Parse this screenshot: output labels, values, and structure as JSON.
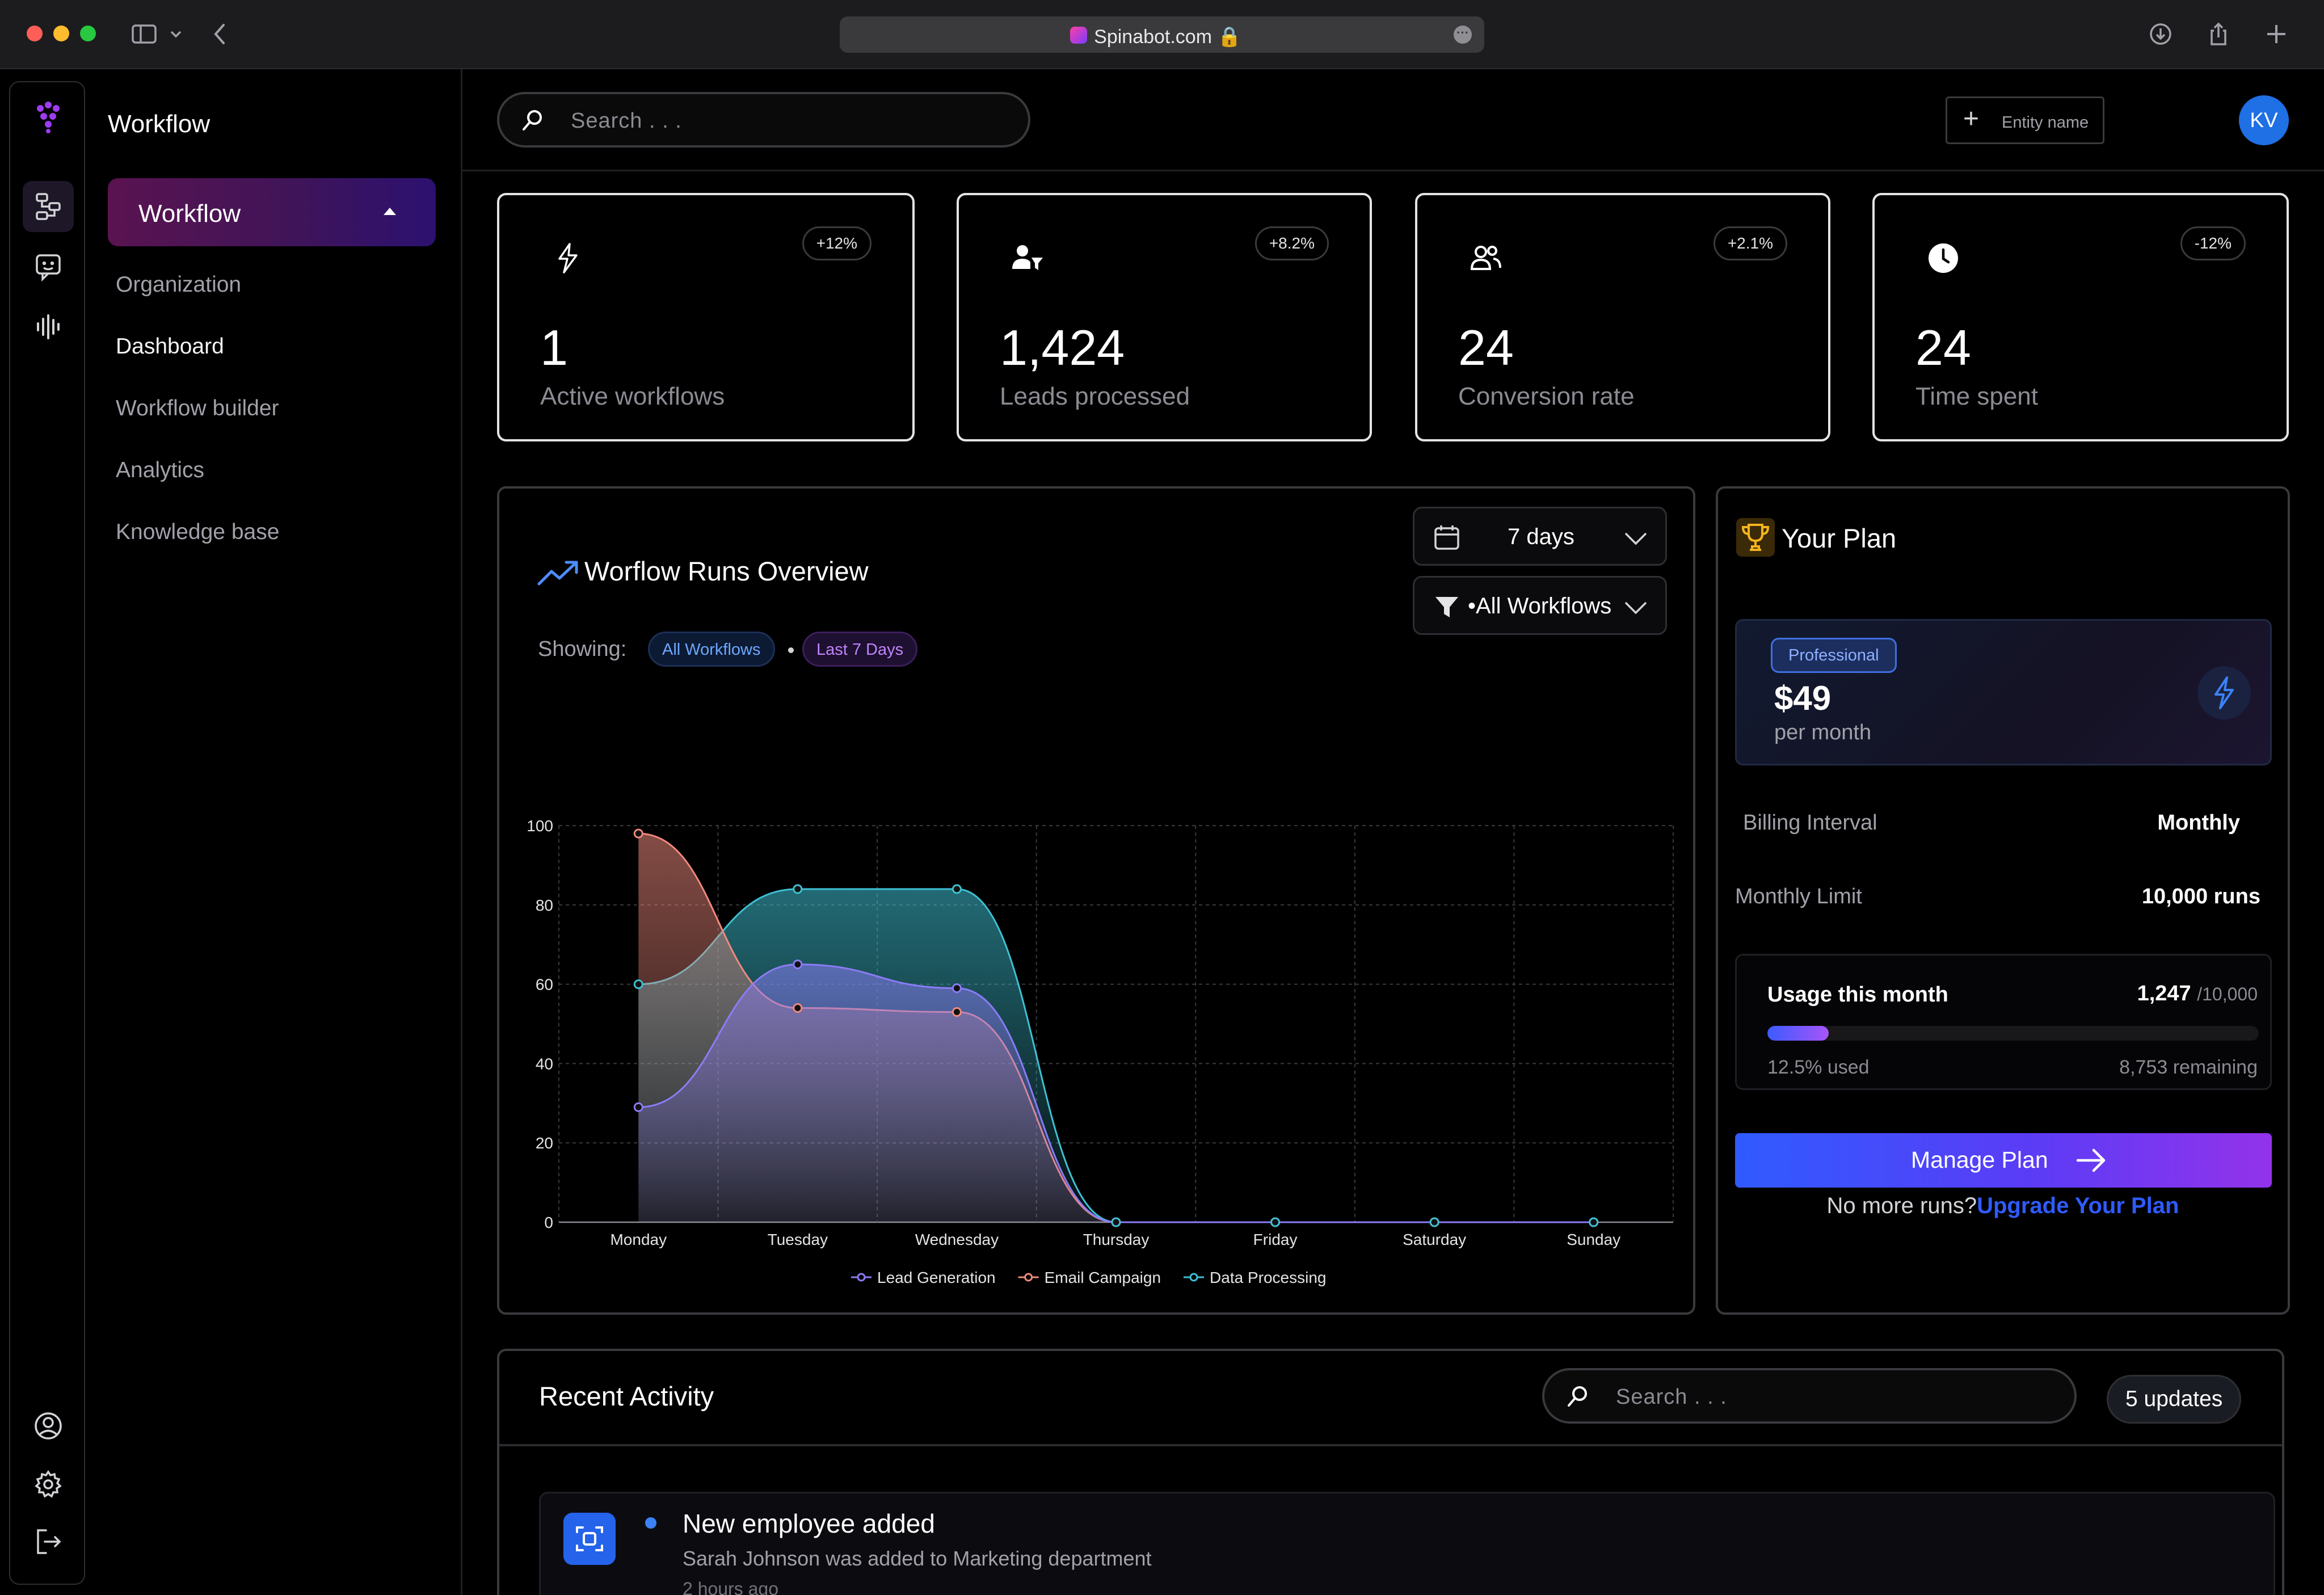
{
  "browser": {
    "url": "Spinabot.com"
  },
  "sidenav": {
    "title": "Workflow",
    "active_group": "Workflow",
    "items": [
      {
        "label": "Organization"
      },
      {
        "label": "Dashboard"
      },
      {
        "label": "Workflow builder"
      },
      {
        "label": "Analytics"
      },
      {
        "label": "Knowledge base"
      }
    ]
  },
  "topbar": {
    "search_placeholder": "Search . . .",
    "entity_button": "Entity name",
    "avatar_initials": "KV"
  },
  "stats": [
    {
      "value": "1",
      "label": "Active workflows",
      "change": "+12%",
      "icon": "workflow-bolt-icon"
    },
    {
      "value": "1,424",
      "label": "Leads processed",
      "change": "+8.2%",
      "icon": "user-leads-icon"
    },
    {
      "value": "24",
      "label": "Conversion rate",
      "change": "+2.1%",
      "icon": "users-icon"
    },
    {
      "value": "24",
      "label": "Time spent",
      "change": "-12%",
      "icon": "clock-icon"
    }
  ],
  "overview": {
    "title": "Worflow Runs Overview",
    "showing_label": "Showing:",
    "chip_workflows": "All Workflows",
    "chip_days": "Last 7 Days",
    "range_select": "7 days",
    "filter_select": "•All Workflows"
  },
  "chart_data": {
    "type": "area",
    "categories": [
      "Monday",
      "Tuesday",
      "Wednesday",
      "Thursday",
      "Friday",
      "Saturday",
      "Sunday"
    ],
    "ylim": [
      0,
      100
    ],
    "yticks": [
      0,
      20,
      40,
      60,
      80,
      100
    ],
    "grid": true,
    "legend_position": "bottom",
    "series": [
      {
        "name": "Lead Generation",
        "color": "#8b7cf6",
        "values": [
          29,
          65,
          59,
          0,
          0,
          0,
          0
        ]
      },
      {
        "name": "Email Campaign",
        "color": "#f08a7e",
        "values": [
          98,
          54,
          53,
          0,
          0,
          0,
          0
        ]
      },
      {
        "name": "Data Processing",
        "color": "#3fc1d4",
        "values": [
          60,
          84,
          84,
          0,
          0,
          0,
          0
        ]
      }
    ]
  },
  "plan": {
    "title": "Your Plan",
    "tier": "Professional",
    "price": "$49",
    "period": "per month",
    "billing_label": "Billing Interval",
    "billing_value": "Monthly",
    "limit_label": "Monthly Limit",
    "limit_value": "10,000 runs",
    "usage_label": "Usage this month",
    "usage_value": "1,247",
    "usage_total": "/10,000",
    "usage_fraction": 0.125,
    "used_text": "12.5% used",
    "remaining_text": "8,753 remaining",
    "manage_button": "Manage Plan",
    "no_runs_text": "No more runs?",
    "upgrade_link": "Upgrade Your Plan"
  },
  "activity": {
    "title": "Recent Activity",
    "search_placeholder": "Search . . .",
    "updates_badge": "5 updates",
    "items": [
      {
        "title": "New employee added",
        "description": "Sarah Johnson was added to Marketing department",
        "time": "2 hours ago"
      }
    ]
  }
}
